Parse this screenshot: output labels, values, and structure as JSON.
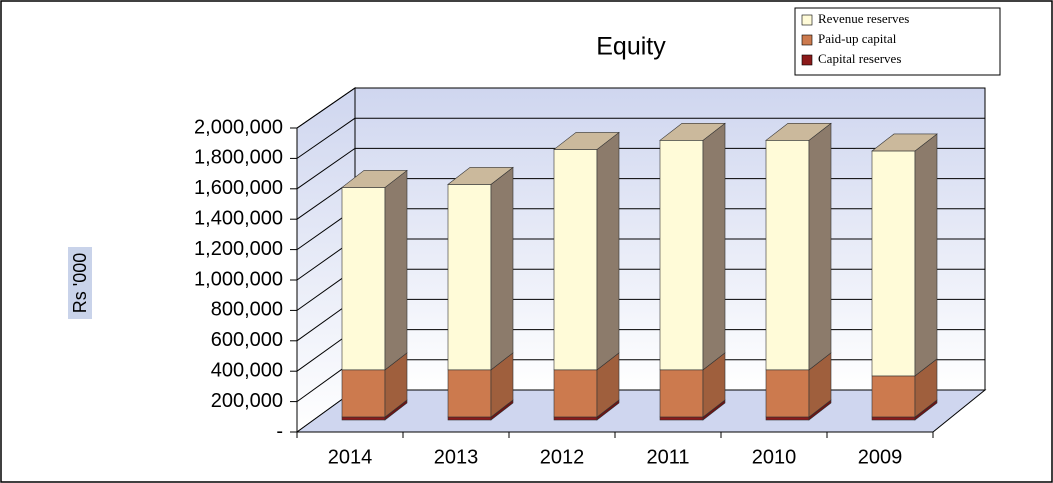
{
  "chart_data": {
    "type": "bar3d_stacked",
    "title": "Equity",
    "y_label": "Rs '000",
    "categories": [
      "2014",
      "2013",
      "2012",
      "2011",
      "2010",
      "2009"
    ],
    "series": [
      {
        "name": "Revenue reserves",
        "color": "#fffbd8",
        "values": [
          1200000,
          1220000,
          1450000,
          1510000,
          1510000,
          1480000
        ]
      },
      {
        "name": "Paid-up capital",
        "color": "#cc7a4e",
        "values": [
          310000,
          310000,
          310000,
          310000,
          310000,
          270000
        ]
      },
      {
        "name": "Capital reserves",
        "color": "#8b1a1a",
        "values": [
          20000,
          20000,
          20000,
          20000,
          20000,
          20000
        ]
      }
    ],
    "ylim": [
      0,
      2000000
    ],
    "yticks": [
      {
        "value": 0,
        "label": "-"
      },
      {
        "value": 200000,
        "label": "200,000"
      },
      {
        "value": 400000,
        "label": "400,000"
      },
      {
        "value": 600000,
        "label": "600,000"
      },
      {
        "value": 800000,
        "label": "800,000"
      },
      {
        "value": 1000000,
        "label": "1,000,000"
      },
      {
        "value": 1200000,
        "label": "1,200,000"
      },
      {
        "value": 1400000,
        "label": "1,400,000"
      },
      {
        "value": 1600000,
        "label": "1,600,000"
      },
      {
        "value": 1800000,
        "label": "1,800,000"
      },
      {
        "value": 2000000,
        "label": "2,000,000"
      }
    ],
    "grid": true
  }
}
